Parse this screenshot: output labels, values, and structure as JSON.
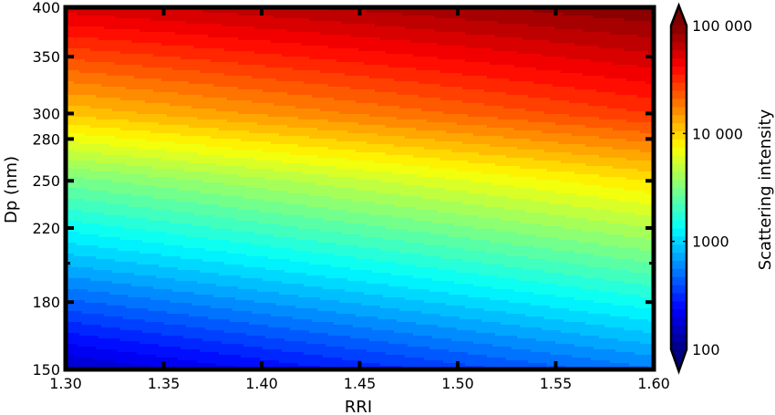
{
  "chart_data": {
    "type": "heatmap",
    "subtype": "filled-contour",
    "title": "",
    "xlabel": "RRI",
    "ylabel": "Dp (nm)",
    "colorbar_label": "Scattering intensity",
    "xlim": [
      1.3,
      1.6
    ],
    "ylim": [
      150,
      400
    ],
    "y_scale": "log",
    "colorbar_scale": "log",
    "colorbar_range": [
      100,
      100000
    ],
    "colorbar_extend": "both",
    "colormap": "jet",
    "grid": false,
    "x_ticks": [
      1.3,
      1.35,
      1.4,
      1.45,
      1.5,
      1.55,
      1.6
    ],
    "x_tick_labels": [
      "1.30",
      "1.35",
      "1.40",
      "1.45",
      "1.50",
      "1.55",
      "1.60"
    ],
    "y_ticks": [
      150,
      180,
      220,
      250,
      280,
      300,
      350,
      400
    ],
    "y_tick_labels": [
      "150",
      "180",
      "220",
      "250",
      "280",
      "300",
      "350",
      "400"
    ],
    "colorbar_ticks": [
      100,
      1000,
      10000,
      100000
    ],
    "colorbar_tick_labels": [
      "100",
      "1000",
      "10 000",
      "100 000"
    ],
    "contour_levels": 40,
    "intensity_samples": [
      {
        "rri": 1.3,
        "dp": 150,
        "intensity": 160
      },
      {
        "rri": 1.6,
        "dp": 150,
        "intensity": 550
      },
      {
        "rri": 1.3,
        "dp": 250,
        "intensity": 2900
      },
      {
        "rri": 1.6,
        "dp": 250,
        "intensity": 9000
      },
      {
        "rri": 1.3,
        "dp": 300,
        "intensity": 11000
      },
      {
        "rri": 1.6,
        "dp": 300,
        "intensity": 30000
      },
      {
        "rri": 1.3,
        "dp": 400,
        "intensity": 55000
      },
      {
        "rri": 1.6,
        "dp": 400,
        "intensity": 100000
      }
    ]
  }
}
